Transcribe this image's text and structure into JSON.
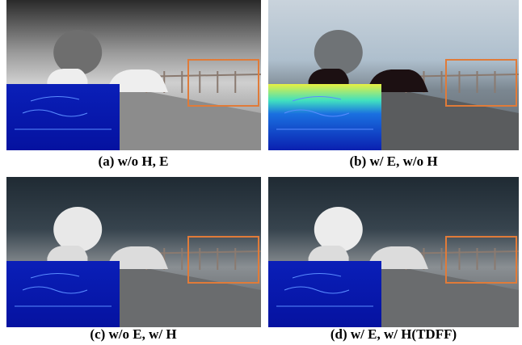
{
  "panels": [
    {
      "caption": "(a) w/o H, E"
    },
    {
      "caption": "(b) w/ E, w/o H"
    },
    {
      "caption": "(c) w/o E, w/ H"
    },
    {
      "caption": "(d) w/ E, w/ H(TDFF)"
    }
  ]
}
